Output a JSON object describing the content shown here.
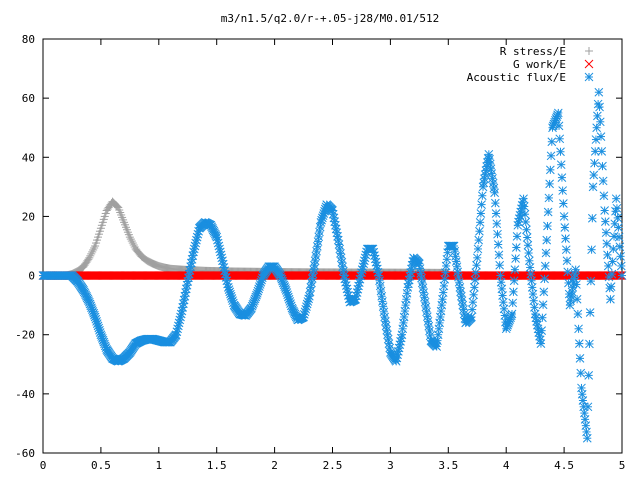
{
  "chart_data": {
    "type": "scatter",
    "title": "m3/n1.5/q2.0/r-+.05-j28/M0.01/512",
    "xlabel": "",
    "ylabel": "",
    "xlim": [
      0,
      5
    ],
    "ylim": [
      -60,
      80
    ],
    "x_ticks": [
      "0",
      "0.5",
      "1",
      "1.5",
      "2",
      "2.5",
      "3",
      "3.5",
      "4",
      "4.5",
      "5"
    ],
    "y_ticks": [
      "80",
      "60",
      "40",
      "20",
      "0",
      "-20",
      "-40",
      "-60"
    ],
    "grid": false,
    "legend_position": "top-right",
    "series": [
      {
        "name": "R stress/E",
        "marker": "plus",
        "color": "#a0a0a0",
        "points": [
          [
            0,
            0
          ],
          [
            0.1,
            0
          ],
          [
            0.2,
            0
          ],
          [
            0.25,
            0.5
          ],
          [
            0.3,
            1.5
          ],
          [
            0.35,
            3
          ],
          [
            0.4,
            6
          ],
          [
            0.45,
            10
          ],
          [
            0.5,
            16
          ],
          [
            0.55,
            22
          ],
          [
            0.6,
            25
          ],
          [
            0.65,
            23
          ],
          [
            0.7,
            18
          ],
          [
            0.75,
            13
          ],
          [
            0.8,
            9
          ],
          [
            0.85,
            6.5
          ],
          [
            0.9,
            5
          ],
          [
            0.95,
            4
          ],
          [
            1.0,
            3.2
          ],
          [
            1.05,
            2.7
          ],
          [
            1.1,
            2.3
          ],
          [
            1.2,
            2
          ],
          [
            1.3,
            1.8
          ],
          [
            1.4,
            1.6
          ],
          [
            1.5,
            1.5
          ],
          [
            1.6,
            1.4
          ],
          [
            1.8,
            1.3
          ],
          [
            2.0,
            1.2
          ],
          [
            2.3,
            1.1
          ],
          [
            2.6,
            1.05
          ],
          [
            3.0,
            1
          ],
          [
            3.5,
            0.9
          ]
        ]
      },
      {
        "name": "G work/E",
        "marker": "cross",
        "color": "#ff0000",
        "points": [
          [
            0,
            0
          ],
          [
            0.5,
            0
          ],
          [
            1.0,
            0
          ],
          [
            1.5,
            0
          ],
          [
            2.0,
            0
          ],
          [
            2.5,
            0
          ],
          [
            3.0,
            0
          ],
          [
            3.5,
            0
          ],
          [
            4.0,
            0
          ],
          [
            4.5,
            0
          ],
          [
            5.0,
            0
          ]
        ]
      },
      {
        "name": "Acoustic flux/E",
        "marker": "star",
        "color": "#1a8fe0",
        "points": [
          [
            0,
            0
          ],
          [
            0.1,
            0
          ],
          [
            0.2,
            0
          ],
          [
            0.25,
            0
          ],
          [
            0.3,
            -2
          ],
          [
            0.35,
            -5
          ],
          [
            0.4,
            -9
          ],
          [
            0.45,
            -14
          ],
          [
            0.5,
            -20
          ],
          [
            0.55,
            -25
          ],
          [
            0.6,
            -28
          ],
          [
            0.65,
            -29
          ],
          [
            0.7,
            -28
          ],
          [
            0.75,
            -26
          ],
          [
            0.8,
            -23
          ],
          [
            0.85,
            -22
          ],
          [
            0.9,
            -21.5
          ],
          [
            0.95,
            -21.5
          ],
          [
            1.0,
            -22
          ],
          [
            1.05,
            -22.5
          ],
          [
            1.1,
            -22.5
          ],
          [
            1.15,
            -20
          ],
          [
            1.2,
            -12
          ],
          [
            1.25,
            -2
          ],
          [
            1.3,
            8
          ],
          [
            1.35,
            16
          ],
          [
            1.4,
            18
          ],
          [
            1.45,
            17
          ],
          [
            1.5,
            13
          ],
          [
            1.55,
            5
          ],
          [
            1.6,
            -4
          ],
          [
            1.65,
            -10
          ],
          [
            1.7,
            -13
          ],
          [
            1.75,
            -13.5
          ],
          [
            1.8,
            -11
          ],
          [
            1.85,
            -6
          ],
          [
            1.9,
            0
          ],
          [
            1.95,
            3
          ],
          [
            2.0,
            3
          ],
          [
            2.05,
            0
          ],
          [
            2.1,
            -5
          ],
          [
            2.15,
            -11
          ],
          [
            2.2,
            -15
          ],
          [
            2.25,
            -14
          ],
          [
            2.3,
            -7
          ],
          [
            2.35,
            5
          ],
          [
            2.4,
            18
          ],
          [
            2.45,
            24
          ],
          [
            2.5,
            22
          ],
          [
            2.55,
            12
          ],
          [
            2.6,
            0
          ],
          [
            2.65,
            -9
          ],
          [
            2.7,
            -8
          ],
          [
            2.75,
            1
          ],
          [
            2.8,
            9
          ],
          [
            2.85,
            9
          ],
          [
            2.9,
            0
          ],
          [
            2.95,
            -14
          ],
          [
            3.0,
            -26
          ],
          [
            3.05,
            -29
          ],
          [
            3.1,
            -20
          ],
          [
            3.15,
            -4
          ],
          [
            3.2,
            6
          ],
          [
            3.25,
            4
          ],
          [
            3.3,
            -9
          ],
          [
            3.35,
            -22
          ],
          [
            3.4,
            -24
          ],
          [
            3.45,
            -8
          ],
          [
            3.5,
            10
          ],
          [
            3.55,
            10
          ],
          [
            3.6,
            -4
          ],
          [
            3.65,
            -16
          ],
          [
            3.7,
            -14
          ],
          [
            3.75,
            6
          ],
          [
            3.8,
            30
          ],
          [
            3.85,
            41
          ],
          [
            3.9,
            28
          ],
          [
            3.95,
            0
          ],
          [
            4.0,
            -18
          ],
          [
            4.05,
            -13
          ],
          [
            4.1,
            17
          ],
          [
            4.15,
            26
          ],
          [
            4.2,
            5
          ],
          [
            4.25,
            -13
          ],
          [
            4.3,
            -23
          ],
          [
            4.35,
            12
          ],
          [
            4.4,
            50
          ],
          [
            4.45,
            55
          ],
          [
            4.5,
            20
          ],
          [
            4.55,
            -10
          ],
          [
            4.6,
            2
          ],
          [
            4.65,
            -38
          ],
          [
            4.7,
            -55
          ],
          [
            4.75,
            30
          ],
          [
            4.8,
            62
          ],
          [
            4.85,
            22
          ],
          [
            4.9,
            -8
          ],
          [
            4.95,
            26
          ],
          [
            5.0,
            0
          ]
        ]
      }
    ]
  }
}
